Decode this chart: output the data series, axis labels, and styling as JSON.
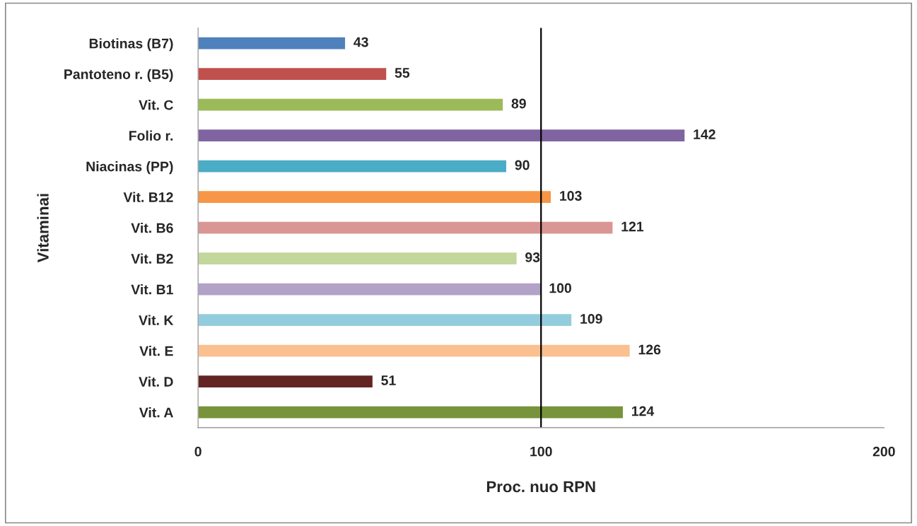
{
  "chart_data": {
    "type": "bar",
    "orientation": "horizontal",
    "xlabel": "Proc. nuo RPN",
    "ylabel": "Vitaminai",
    "categories": [
      "Biotinas (B7)",
      "Pantoteno r. (B5)",
      "Vit. C",
      "Folio r.",
      "Niacinas (PP)",
      "Vit. B12",
      "Vit. B6",
      "Vit. B2",
      "Vit. B1",
      "Vit. K",
      "Vit. E",
      "Vit. D",
      "Vit. A"
    ],
    "values": [
      43,
      55,
      89,
      142,
      90,
      103,
      121,
      93,
      100,
      109,
      126,
      51,
      124
    ],
    "colors": [
      "#4f81bd",
      "#c0504d",
      "#9bbb59",
      "#8064a2",
      "#4bacc6",
      "#f79646",
      "#d99694",
      "#c3d69b",
      "#b3a2c7",
      "#93cddd",
      "#fac090",
      "#632523",
      "#77933c"
    ],
    "xlim": [
      0,
      200
    ],
    "xticks": [
      0,
      100,
      200
    ],
    "ref_lines": [
      {
        "axis": "x",
        "value": 100,
        "color": "#000000"
      }
    ],
    "data_labels": true,
    "grid": false,
    "legend": false
  }
}
